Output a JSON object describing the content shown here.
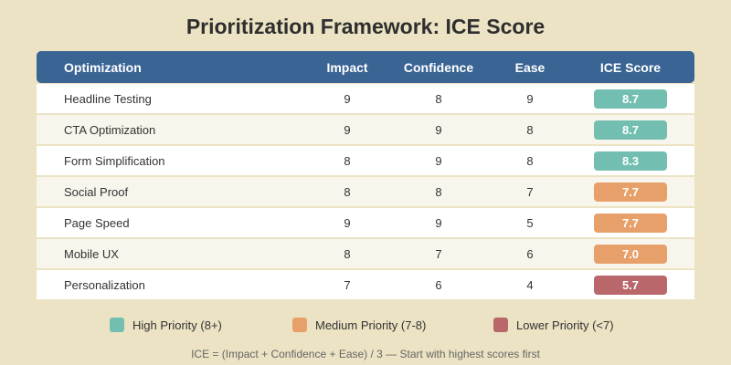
{
  "title": "Prioritization Framework: ICE Score",
  "columns": [
    "Optimization",
    "Impact",
    "Confidence",
    "Ease",
    "ICE Score"
  ],
  "rows": [
    {
      "name": "Headline Testing",
      "impact": "9",
      "confidence": "8",
      "ease": "9",
      "score": "8.7",
      "priority": "high"
    },
    {
      "name": "CTA Optimization",
      "impact": "9",
      "confidence": "9",
      "ease": "8",
      "score": "8.7",
      "priority": "high"
    },
    {
      "name": "Form Simplification",
      "impact": "8",
      "confidence": "9",
      "ease": "8",
      "score": "8.3",
      "priority": "high"
    },
    {
      "name": "Social Proof",
      "impact": "8",
      "confidence": "8",
      "ease": "7",
      "score": "7.7",
      "priority": "medium"
    },
    {
      "name": "Page Speed",
      "impact": "9",
      "confidence": "9",
      "ease": "5",
      "score": "7.7",
      "priority": "medium"
    },
    {
      "name": "Mobile UX",
      "impact": "8",
      "confidence": "7",
      "ease": "6",
      "score": "7.0",
      "priority": "medium"
    },
    {
      "name": "Personalization",
      "impact": "7",
      "confidence": "6",
      "ease": "4",
      "score": "5.7",
      "priority": "low"
    }
  ],
  "colors": {
    "high": "#72bfb2",
    "medium": "#e8a06a",
    "low": "#b9676a",
    "header": "#3a6494"
  },
  "legend": [
    {
      "label": "High Priority (8+)",
      "priority": "high"
    },
    {
      "label": "Medium Priority (7-8)",
      "priority": "medium"
    },
    {
      "label": "Lower Priority (<7)",
      "priority": "low"
    }
  ],
  "footnote": "ICE = (Impact + Confidence + Ease) / 3 — Start with highest scores first"
}
